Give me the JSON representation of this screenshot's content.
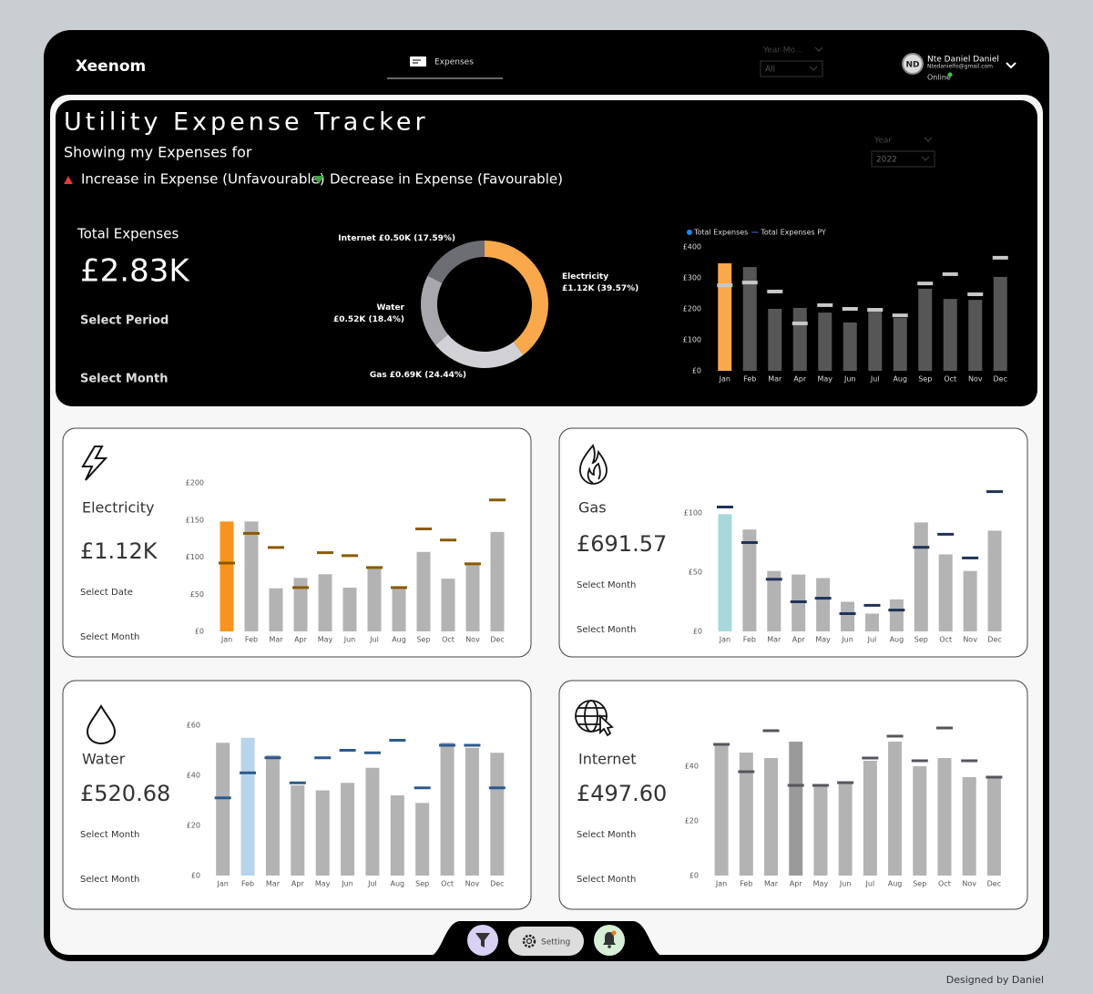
{
  "header": {
    "logo": "Xeenom",
    "tab": "Expenses",
    "filter": {
      "label": "Year-Mo...",
      "value": "All"
    },
    "user": {
      "initials": "ND",
      "name": "Nte Daniel Daniel",
      "email": "Ntedanielfo@gmail.com",
      "status": "Online"
    }
  },
  "main": {
    "title": "Utility Expense Tracker",
    "subtitle": "Showing my Expenses for",
    "increase_label": "Increase in Expense (Unfavourable)",
    "decrease_label": "Decrease in Expense (Favourable)",
    "year_filter": {
      "label": "Year",
      "value": "2022"
    },
    "kpi": {
      "label": "Total Expenses",
      "value": "£2.83K",
      "links": [
        "Select Period",
        "Select Month"
      ]
    }
  },
  "cards": [
    {
      "title": "Electricity",
      "value": "£1.12K",
      "links": [
        "Select Date",
        "Select Month"
      ]
    },
    {
      "title": "Gas",
      "value": "£691.57",
      "links": [
        "Select Month",
        "Select Month"
      ]
    },
    {
      "title": "Water",
      "value": "£520.68",
      "links": [
        "Select Month",
        "Select Month"
      ]
    },
    {
      "title": "Internet",
      "value": "£497.60",
      "links": [
        "Select Month",
        "Select Month"
      ]
    }
  ],
  "bottom_bar": {
    "setting": "Setting"
  },
  "footer": "Designed by Daniel",
  "chart_data": [
    {
      "type": "donut",
      "categories": [
        "Electricity",
        "Gas",
        "Water",
        "Internet"
      ],
      "values": [
        39.57,
        24.44,
        18.4,
        17.59
      ],
      "value_labels": [
        "£1.12K (39.57%)",
        "£0.69K (24.44%)",
        "£0.52K (18.4%)",
        "£0.50K (17.59%)"
      ],
      "colors": [
        "#f9a94b",
        "#d2d2d6",
        "#a7a7ad",
        "#6d6d74"
      ]
    },
    {
      "type": "bar",
      "categories": [
        "Jan",
        "Feb",
        "Mar",
        "Apr",
        "May",
        "Jun",
        "Jul",
        "Aug",
        "Sep",
        "Oct",
        "Nov",
        "Dec"
      ],
      "series": [
        {
          "name": "Total Expenses",
          "color": "#565656",
          "legend_color": "#1e88e5",
          "values": [
            347,
            335,
            200,
            203,
            188,
            156,
            191,
            171,
            265,
            232,
            229,
            303
          ]
        },
        {
          "name": "Total Expenses PY",
          "color": "#c8c8c8",
          "legend_color": "#1f3a6e",
          "values": [
            276,
            285,
            256,
            153,
            212,
            200,
            197,
            179,
            282,
            312,
            247,
            365
          ]
        }
      ],
      "highlight": {
        "index": 0,
        "color": "#f9a94b"
      },
      "ylim": [
        0,
        400
      ],
      "yticks": [
        {
          "value": 0,
          "label": "£0"
        },
        {
          "value": 100,
          "label": "£100"
        },
        {
          "value": 200,
          "label": "£200"
        },
        {
          "value": 300,
          "label": "£300"
        },
        {
          "value": 400,
          "label": "£400"
        }
      ],
      "legend": "top-left"
    },
    {
      "type": "bar",
      "categories": [
        "Jan",
        "Feb",
        "Mar",
        "Apr",
        "May",
        "Jun",
        "Jul",
        "Aug",
        "Sep",
        "Oct",
        "Nov",
        "Dec"
      ],
      "series": [
        {
          "color": "#b3b3b3",
          "values": [
            148,
            148,
            58,
            72,
            77,
            59,
            87,
            58,
            107,
            71,
            90,
            134
          ]
        },
        {
          "color": "#8a5a00",
          "values": [
            92,
            132,
            113,
            59,
            106,
            102,
            86,
            59,
            138,
            123,
            91,
            177
          ]
        }
      ],
      "highlight": {
        "index": 0,
        "color": "#f7941d"
      },
      "ylim": [
        0,
        200
      ],
      "yticks": [
        {
          "value": 0,
          "label": "£0"
        },
        {
          "value": 50,
          "label": "£50"
        },
        {
          "value": 100,
          "label": "£100"
        },
        {
          "value": 150,
          "label": "£150"
        },
        {
          "value": 200,
          "label": "£200"
        }
      ]
    },
    {
      "type": "bar",
      "categories": [
        "Jan",
        "Feb",
        "Mar",
        "Apr",
        "May",
        "Jun",
        "Jul",
        "Aug",
        "Sep",
        "Oct",
        "Nov",
        "Dec"
      ],
      "series": [
        {
          "color": "#b3b3b3",
          "values": [
            99,
            86,
            51,
            48,
            45,
            25,
            15,
            27,
            92,
            65,
            51,
            85
          ]
        },
        {
          "color": "#1f3358",
          "values": [
            105,
            75,
            44,
            25,
            28,
            15,
            22,
            18,
            71,
            82,
            62,
            118
          ]
        }
      ],
      "highlight": {
        "index": 0,
        "color": "#a8d8dc"
      },
      "ylim": [
        0,
        120
      ],
      "yticks": [
        {
          "value": 0,
          "label": "£0"
        },
        {
          "value": 50,
          "label": "£50"
        },
        {
          "value": 100,
          "label": "£100"
        }
      ]
    },
    {
      "type": "bar",
      "categories": [
        "Jan",
        "Feb",
        "Mar",
        "Apr",
        "May",
        "Jun",
        "Jul",
        "Aug",
        "Sep",
        "Oct",
        "Nov",
        "Dec"
      ],
      "series": [
        {
          "color": "#b3b3b3",
          "values": [
            53,
            55,
            48,
            36,
            34,
            37,
            43,
            32,
            29,
            53,
            51,
            49
          ]
        },
        {
          "color": "#2c5a8c",
          "values": [
            31,
            41,
            47,
            37,
            47,
            50,
            49,
            54,
            35,
            52,
            52,
            35
          ]
        }
      ],
      "highlight": {
        "index": 1,
        "color": "#b7d4ea"
      },
      "ylim": [
        0,
        60
      ],
      "yticks": [
        {
          "value": 0,
          "label": "£0"
        },
        {
          "value": 20,
          "label": "£20"
        },
        {
          "value": 40,
          "label": "£40"
        },
        {
          "value": 60,
          "label": "£60"
        }
      ]
    },
    {
      "type": "bar",
      "categories": [
        "Jan",
        "Feb",
        "Mar",
        "Apr",
        "May",
        "Jun",
        "Jul",
        "Aug",
        "Sep",
        "Oct",
        "Nov",
        "Dec"
      ],
      "series": [
        {
          "color": "#b3b3b3",
          "values": [
            48,
            45,
            43,
            49,
            33,
            34,
            42,
            49,
            40,
            43,
            36,
            36
          ]
        },
        {
          "color": "#55555c",
          "values": [
            48,
            38,
            53,
            33,
            33,
            34,
            43,
            51,
            42,
            54,
            42,
            36
          ]
        }
      ],
      "highlight": {
        "index": 3,
        "color": "#9a9a9a"
      },
      "ylim": [
        0,
        55
      ],
      "yticks": [
        {
          "value": 0,
          "label": "£0"
        },
        {
          "value": 20,
          "label": "£20"
        },
        {
          "value": 40,
          "label": "£40"
        }
      ]
    }
  ]
}
